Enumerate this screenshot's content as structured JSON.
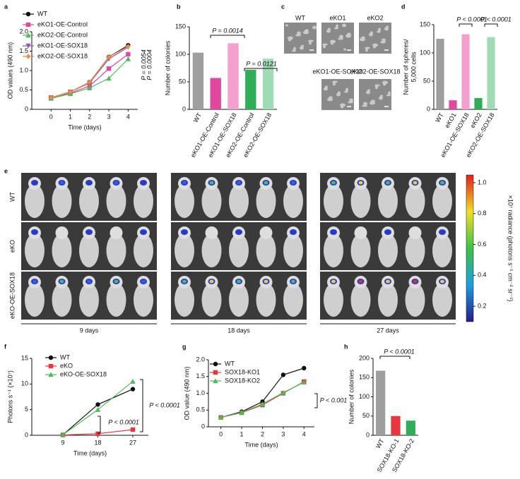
{
  "chart_data": [
    {
      "label": "a",
      "type": "line",
      "xlabel": "Time (days)",
      "ylabel": "OD values (490 nm)",
      "x": [
        0,
        1,
        2,
        3,
        4
      ],
      "xlim": [
        -1,
        4.5
      ],
      "xticks": [
        0,
        1,
        2,
        3,
        4
      ],
      "ylim": [
        0,
        2
      ],
      "yticks": [
        0,
        0.5,
        {
          "value": 1,
          "label": "1.0"
        },
        1.5,
        {
          "value": 2,
          "label": "2.0"
        }
      ],
      "legend": "upper left",
      "series": [
        {
          "name": "WT",
          "color": "#111111",
          "marker": "circle",
          "values": [
            0.3,
            0.45,
            0.7,
            1.35,
            1.65
          ]
        },
        {
          "name": "eKO1-OE-Control",
          "color": "#e0479e",
          "marker": "square",
          "values": [
            0.3,
            0.42,
            0.6,
            1.05,
            1.42
          ]
        },
        {
          "name": "eKO2-OE-Control",
          "color": "#4cbb5a",
          "marker": "triangle",
          "values": [
            0.28,
            0.4,
            0.55,
            0.8,
            1.3
          ]
        },
        {
          "name": "eKO1-OE-SOX18",
          "color": "#8a5fb5",
          "marker": "triangle-down",
          "values": [
            0.3,
            0.45,
            0.68,
            1.3,
            1.6
          ]
        },
        {
          "name": "eKO2-OE-SOX18",
          "color": "#f08c3a",
          "marker": "diamond",
          "values": [
            0.3,
            0.45,
            0.7,
            1.35,
            1.62
          ]
        }
      ],
      "annotations": [
        "P = 0.0054",
        "P = 0.0004"
      ]
    },
    {
      "label": "b",
      "type": "bar",
      "ylabel": "Number of colonies",
      "categories": [
        "WT",
        "eKO1-OE-Control",
        "eKO1-OE-SOX18",
        "eKO2-OE-Control",
        "eKO2-OE-SOX18"
      ],
      "values": [
        103,
        57,
        120,
        72,
        92
      ],
      "colors": [
        "#9e9e9e",
        "#e0479e",
        "#f3a0cf",
        "#2fae57",
        "#9fdcb4"
      ],
      "ylim": [
        0,
        150
      ],
      "yticks": [
        0,
        50,
        100,
        150
      ],
      "annotations": [
        "P = 0.0014",
        "P = 0.0121"
      ]
    },
    {
      "label": "d",
      "type": "bar",
      "ylabel": [
        "Number of spheres/",
        "5,000 cells"
      ],
      "categories": [
        "WT",
        "eKO1",
        "eKO1-OE-SOX18",
        "eKO2",
        "eKO2-OE-SOX18"
      ],
      "values": [
        125,
        16,
        133,
        20,
        128
      ],
      "colors": [
        "#9e9e9e",
        "#e0479e",
        "#f3a0cf",
        "#2fae57",
        "#9fdcb4"
      ],
      "ylim": [
        0,
        150
      ],
      "yticks": [
        0,
        50,
        100,
        150
      ],
      "annotations": [
        "P < 0.0001",
        "P < 0.0001"
      ]
    },
    {
      "label": "f",
      "type": "line",
      "xlabel": "Time (days)",
      "ylabel": "Photons s⁻¹ (×10⁷)",
      "x": [
        9,
        18,
        27
      ],
      "xlim": [
        1,
        31
      ],
      "xticks": [
        9,
        18,
        27
      ],
      "ylim": [
        0,
        15
      ],
      "yticks": [
        0,
        5,
        10,
        15
      ],
      "legend": "upper left",
      "series": [
        {
          "name": "WT",
          "color": "#111111",
          "marker": "circle",
          "values": [
            0.1,
            6,
            9
          ]
        },
        {
          "name": "eKO",
          "color": "#e8383d",
          "marker": "square",
          "values": [
            0.05,
            0.3,
            1.1
          ]
        },
        {
          "name": "eKO-OE-SOX18",
          "color": "#4cbb5a",
          "marker": "triangle",
          "values": [
            0.1,
            5,
            10.5
          ]
        }
      ],
      "annotations": [
        "P < 0.0001",
        "P < 0.0001"
      ]
    },
    {
      "label": "g",
      "type": "line",
      "xlabel": "Time (days)",
      "ylabel": "OD value (490 nm)",
      "x": [
        0,
        1,
        2,
        3,
        4
      ],
      "xlim": [
        -0.6,
        4.5
      ],
      "xticks": [
        0,
        1,
        2,
        3,
        4
      ],
      "ylim": [
        0,
        2
      ],
      "yticks": [
        0,
        0.5,
        {
          "value": 1,
          "label": "1.0"
        },
        1.5,
        {
          "value": 2,
          "label": "2.0"
        }
      ],
      "legend": "upper left",
      "series": [
        {
          "name": "WT",
          "color": "#111111",
          "marker": "circle",
          "values": [
            0.28,
            0.45,
            0.75,
            1.55,
            1.75
          ]
        },
        {
          "name": "SOX18-KO1",
          "color": "#e8383d",
          "marker": "square",
          "values": [
            0.28,
            0.42,
            0.65,
            1.0,
            1.35
          ]
        },
        {
          "name": "SOX18-KO2",
          "color": "#4cbb5a",
          "marker": "triangle",
          "values": [
            0.28,
            0.43,
            0.68,
            1.02,
            1.33
          ]
        }
      ],
      "annotations": [
        "P < 0.001"
      ]
    },
    {
      "label": "h",
      "type": "bar",
      "ylabel": "Number of colonies",
      "categories": [
        "WT",
        "SOX18-KO-1",
        "SOX18-KO-2"
      ],
      "values": [
        168,
        50,
        38
      ],
      "colors": [
        "#9e9e9e",
        "#e8383d",
        "#2fae57"
      ],
      "ylim": [
        0,
        200
      ],
      "yticks": [
        0,
        50,
        100,
        150,
        200
      ],
      "annotations": [
        "P < 0.0001"
      ]
    }
  ],
  "panel_c": {
    "label": "c",
    "images": [
      "WT",
      "eKO1",
      "eKO2",
      "eKO1-OE-SOX18",
      "eKO2-OE-SOX18"
    ]
  },
  "panel_e": {
    "label": "e",
    "rows": [
      "WT",
      "eKO",
      "eKO-OE-SOX18"
    ],
    "columns": [
      "9 days",
      "18 days",
      "27 days"
    ],
    "colorbar": {
      "lim": [
        0.1,
        1.05
      ],
      "ticks": [
        0.2,
        0.4,
        0.6,
        0.8,
        {
          "value": 1,
          "label": "1.0"
        }
      ],
      "label": "×10⁷ radiance (photons s⁻¹ cm⁻² sr⁻¹)"
    }
  }
}
